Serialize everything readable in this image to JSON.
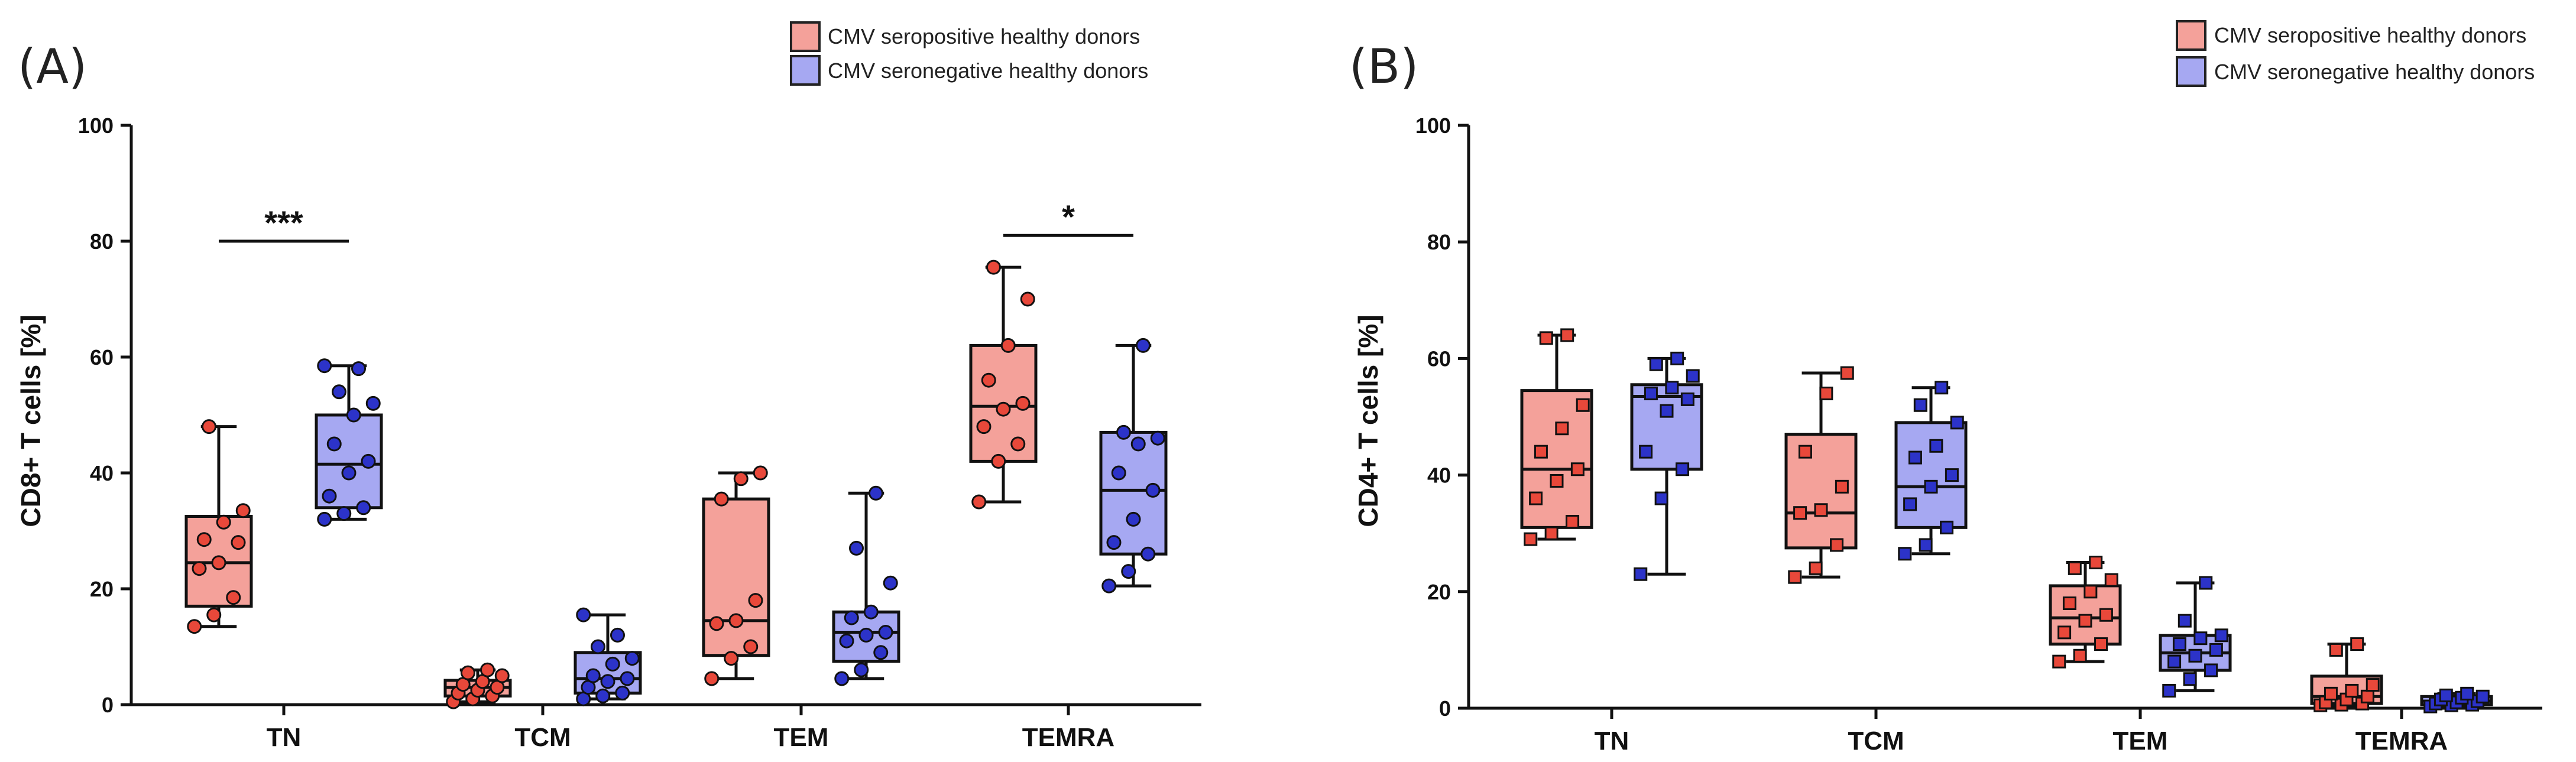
{
  "chart_data": [
    {
      "type": "box",
      "panel_label": "(A)",
      "ylabel": "CD8+ T cells [%]",
      "xlabel": "",
      "ylim": [
        0,
        100
      ],
      "yticks": [
        "0",
        "20",
        "40",
        "60",
        "80",
        "100"
      ],
      "categories": [
        "TN",
        "TCM",
        "TEM",
        "TEMRA"
      ],
      "marker": "circle",
      "legend": [
        "CMV seropositive healthy donors",
        "CMV seronegative healthy donors"
      ],
      "series": [
        {
          "name": "CMV seropositive healthy donors",
          "color": "#f4a19a",
          "point_color": "#e8483a",
          "boxes": [
            {
              "category": "TN",
              "min": 13.5,
              "q1": 17,
              "median": 24.5,
              "q3": 32.5,
              "max": 48,
              "points": [
                13.5,
                15.5,
                18.5,
                23.5,
                24.5,
                28,
                28.5,
                31.5,
                33.5,
                48
              ]
            },
            {
              "category": "TCM",
              "min": 0.5,
              "q1": 1.5,
              "median": 3,
              "q3": 4.2,
              "max": 6,
              "points": [
                0.5,
                1,
                1.5,
                2,
                2.5,
                3,
                3.5,
                4,
                5,
                5.5,
                6
              ]
            },
            {
              "category": "TEM",
              "min": 4.5,
              "q1": 8.5,
              "median": 14.5,
              "q3": 35.5,
              "max": 40,
              "points": [
                4.5,
                8,
                10,
                14,
                14.5,
                18,
                35.5,
                39,
                40
              ]
            },
            {
              "category": "TEMRA",
              "min": 35,
              "q1": 42,
              "median": 51.5,
              "q3": 62,
              "max": 75.5,
              "points": [
                35,
                42,
                45,
                48,
                51,
                52,
                56,
                62,
                70,
                75.5
              ]
            }
          ]
        },
        {
          "name": "CMV seronegative healthy donors",
          "color": "#a6a8f2",
          "point_color": "#2c33c9",
          "boxes": [
            {
              "category": "TN",
              "min": 32,
              "q1": 34,
              "median": 41.5,
              "q3": 50,
              "max": 58.5,
              "points": [
                32,
                33,
                34,
                36,
                40,
                42,
                45,
                50,
                52,
                54,
                58,
                58.5
              ]
            },
            {
              "category": "TCM",
              "min": 1,
              "q1": 2,
              "median": 4.5,
              "q3": 9,
              "max": 15.5,
              "points": [
                1,
                1.5,
                2,
                3,
                4,
                4.5,
                5,
                7,
                8,
                10,
                12,
                15.5
              ]
            },
            {
              "category": "TEM",
              "min": 4.5,
              "q1": 7.5,
              "median": 12.5,
              "q3": 16,
              "max": 36.5,
              "points": [
                4.5,
                6,
                9,
                11,
                12,
                12.5,
                15,
                16,
                21,
                27,
                36.5
              ]
            },
            {
              "category": "TEMRA",
              "min": 20.5,
              "q1": 26,
              "median": 37,
              "q3": 47,
              "max": 62,
              "points": [
                20.5,
                23,
                26,
                28,
                32,
                37,
                40,
                45,
                46,
                47,
                62
              ]
            }
          ]
        }
      ],
      "annotations": [
        {
          "category": "TN",
          "text": "***",
          "y": 80
        },
        {
          "category": "TEMRA",
          "text": "*",
          "y": 81
        }
      ]
    },
    {
      "type": "box",
      "panel_label": "(B)",
      "ylabel": "CD4+ T cells [%]",
      "xlabel": "",
      "ylim": [
        0,
        100
      ],
      "yticks": [
        "0",
        "20",
        "40",
        "60",
        "80",
        "100"
      ],
      "categories": [
        "TN",
        "TCM",
        "TEM",
        "TEMRA"
      ],
      "marker": "square",
      "legend": [
        "CMV seropositive healthy donors",
        "CMV seronegative healthy donors"
      ],
      "series": [
        {
          "name": "CMV seropositive healthy donors",
          "color": "#f4a19a",
          "point_color": "#e8483a",
          "boxes": [
            {
              "category": "TN",
              "min": 29,
              "q1": 31,
              "median": 41,
              "q3": 54.5,
              "max": 64,
              "points": [
                29,
                30,
                32,
                36,
                39,
                41,
                44,
                48,
                52,
                63.5,
                64
              ]
            },
            {
              "category": "TCM",
              "min": 22.5,
              "q1": 27.5,
              "median": 33.5,
              "q3": 47,
              "max": 57.5,
              "points": [
                22.5,
                24,
                28,
                33.5,
                34,
                38,
                44,
                54,
                57.5
              ]
            },
            {
              "category": "TEM",
              "min": 8,
              "q1": 11,
              "median": 15.5,
              "q3": 21,
              "max": 25,
              "points": [
                8,
                9,
                11,
                13,
                15,
                16,
                18,
                20,
                22,
                24,
                25
              ]
            },
            {
              "category": "TEMRA",
              "min": 0.5,
              "q1": 0.8,
              "median": 2,
              "q3": 5.5,
              "max": 11,
              "points": [
                0.5,
                0.6,
                0.8,
                1,
                1.5,
                2,
                2.5,
                3,
                4,
                10,
                11
              ]
            }
          ]
        },
        {
          "name": "CMV seronegative healthy donors",
          "color": "#a6a8f2",
          "point_color": "#2c33c9",
          "boxes": [
            {
              "category": "TN",
              "min": 23,
              "q1": 41,
              "median": 53.5,
              "q3": 55.5,
              "max": 60,
              "points": [
                23,
                36,
                41,
                44,
                51,
                53,
                54,
                55,
                57,
                59,
                60
              ]
            },
            {
              "category": "TCM",
              "min": 26.5,
              "q1": 31,
              "median": 38,
              "q3": 49,
              "max": 55,
              "points": [
                26.5,
                28,
                31,
                35,
                38,
                40,
                43,
                45,
                49,
                52,
                55
              ]
            },
            {
              "category": "TEM",
              "min": 3,
              "q1": 6.5,
              "median": 9.5,
              "q3": 12.5,
              "max": 21.5,
              "points": [
                3,
                5,
                6.5,
                8,
                9,
                10,
                11,
                12,
                12.5,
                15,
                21.5
              ]
            },
            {
              "category": "TEMRA",
              "min": 0.3,
              "q1": 0.6,
              "median": 1.2,
              "q3": 2,
              "max": 2.5,
              "points": [
                0.3,
                0.5,
                0.6,
                0.8,
                1,
                1.2,
                1.5,
                1.8,
                2,
                2.2,
                2.5
              ]
            }
          ]
        }
      ],
      "annotations": []
    }
  ]
}
